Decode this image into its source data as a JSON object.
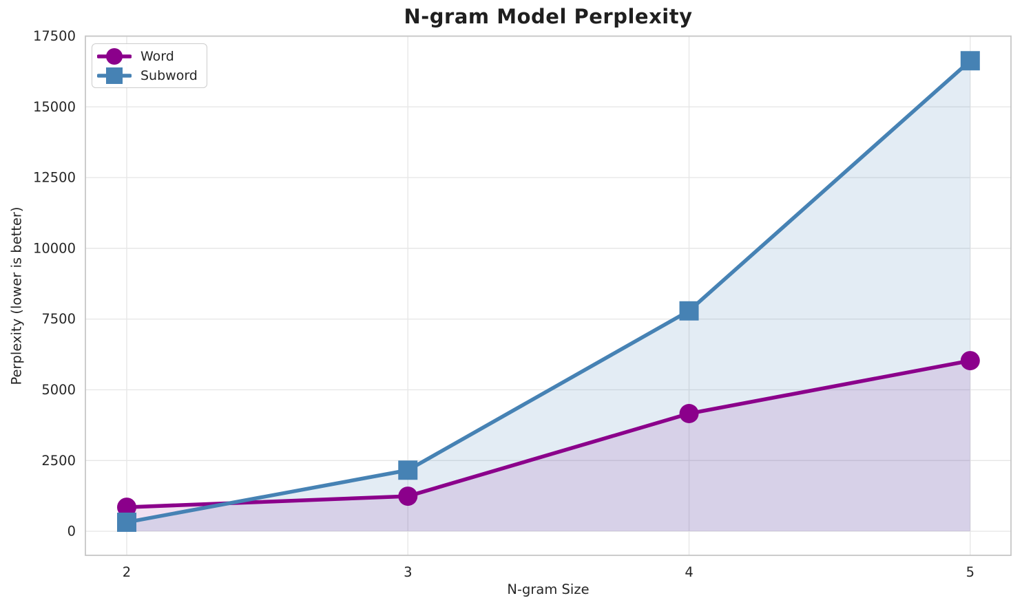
{
  "chart_data": {
    "type": "line",
    "title": "N-gram Model Perplexity",
    "xlabel": "N-gram Size",
    "ylabel": "Perplexity (lower is better)",
    "x": [
      2,
      3,
      4,
      5
    ],
    "series": [
      {
        "name": "Word",
        "values": [
          850,
          1240,
          4160,
          6030
        ],
        "color": "#8B008B",
        "marker": "circle",
        "fill_alpha": 0.12
      },
      {
        "name": "Subword",
        "values": [
          320,
          2160,
          7790,
          16630
        ],
        "color": "#4682B4",
        "marker": "square",
        "fill_alpha": 0.15
      }
    ],
    "xticks": [
      "2",
      "3",
      "4",
      "5"
    ],
    "xtick_values": [
      2,
      3,
      4,
      5
    ],
    "yticks": [
      "0",
      "2500",
      "5000",
      "7500",
      "10000",
      "12500",
      "15000",
      "17500"
    ],
    "ytick_values": [
      0,
      2500,
      5000,
      7500,
      10000,
      12500,
      15000,
      17500
    ],
    "xlim": [
      1.853,
      5.145
    ],
    "ylim": [
      -850,
      17500
    ],
    "grid": true,
    "area_fill_to": 0,
    "legend_position": "upper left",
    "colors": {
      "grid": "#e7e7e7",
      "spine": "#c6c6c6",
      "text": "#262626",
      "background": "#ffffff"
    }
  }
}
